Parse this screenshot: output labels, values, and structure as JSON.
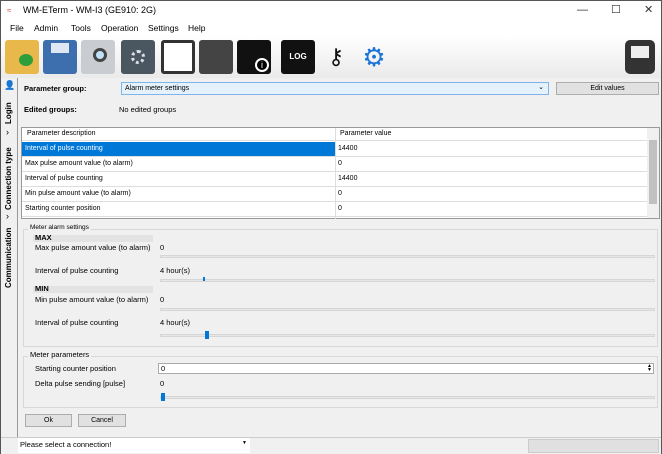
{
  "window": {
    "title": "WM-ETerm - WM-I3 (GE910: 2G)",
    "minimize": "—",
    "maximize": "☐",
    "close": "✕"
  },
  "menu": [
    "File",
    "Admin",
    "Tools",
    "Operation",
    "Settings",
    "Help"
  ],
  "toolbar": [
    "open-folder-icon",
    "save-icon",
    "search-device-icon",
    "settings-book-icon",
    "document-search-icon",
    "edit-document-icon",
    "document-info-icon",
    "log-icon",
    "key-icon",
    "gears-icon",
    "meter-icon"
  ],
  "side_tabs": [
    "Login",
    "Connection type",
    "Communication"
  ],
  "header": {
    "param_group_label": "Parameter group:",
    "param_group_value": "Alarm meter settings",
    "edit_values": "Edit values",
    "edited_groups_label": "Edited groups:",
    "edited_groups_value": "No edited groups"
  },
  "grid": {
    "columns": [
      "Parameter description",
      "Parameter value"
    ],
    "rows": [
      [
        "Interval of pulse counting",
        "14400"
      ],
      [
        "Max pulse amount value (to alarm)",
        "0"
      ],
      [
        "Interval of pulse counting",
        "14400"
      ],
      [
        "Min pulse amount value (to alarm)",
        "0"
      ],
      [
        "Starting counter position",
        "0"
      ]
    ]
  },
  "alarm": {
    "title": "Meter alarm settings",
    "max_title": "MAX",
    "max_pulse_label": "Max pulse amount value (to alarm)",
    "max_pulse_value": "0",
    "max_interval_label": "Interval of pulse counting",
    "max_interval_value": "4 hour(s)",
    "min_title": "MIN",
    "min_pulse_label": "Min pulse amount value (to alarm)",
    "min_pulse_value": "0",
    "min_interval_label": "Interval of pulse counting",
    "min_interval_value": "4 hour(s)"
  },
  "meter": {
    "title": "Meter parameters",
    "start_label": "Starting counter position",
    "start_value": "0",
    "delta_label": "Delta pulse sending [pulse]",
    "delta_value": "0"
  },
  "buttons": {
    "ok": "Ok",
    "cancel": "Cancel"
  },
  "status": {
    "connection": "Please select a connection!"
  }
}
